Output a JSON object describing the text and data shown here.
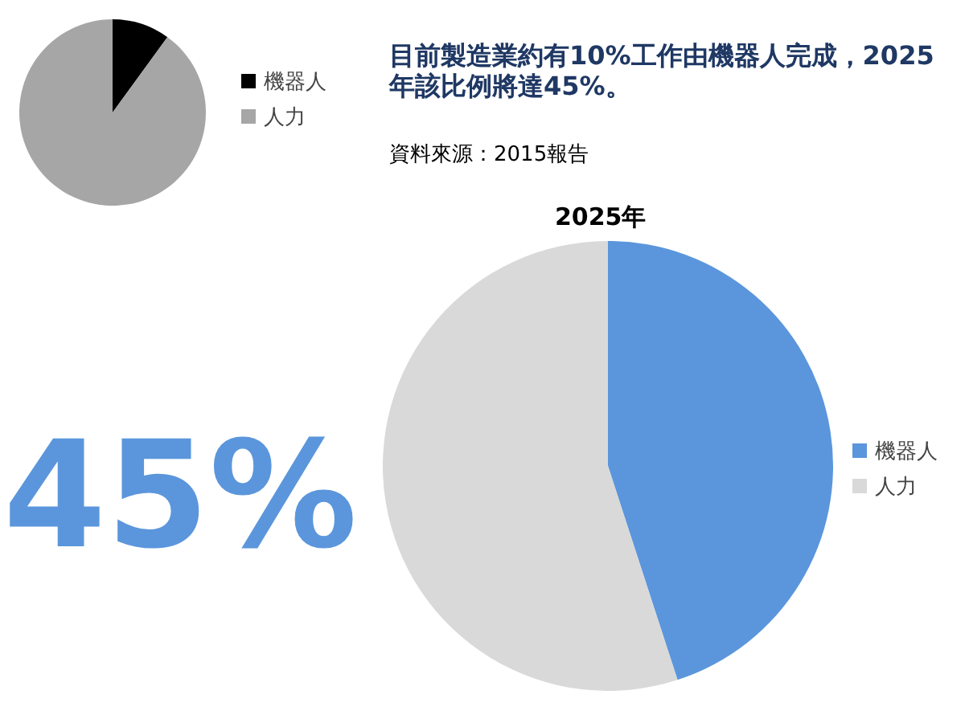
{
  "chart_data": [
    {
      "type": "pie",
      "title": "目前製造業約有10%工作由機器人完成，2025年該比例將達45%。",
      "categories": [
        "機器人",
        "人力"
      ],
      "values": [
        10,
        90
      ],
      "colors": [
        "#000000",
        "#a6a6a6"
      ],
      "legend": "right",
      "annotations": [
        "資料來源：2015報告"
      ]
    },
    {
      "type": "pie",
      "title": "2025年",
      "categories": [
        "機器人",
        "人力"
      ],
      "values": [
        45,
        55
      ],
      "colors": [
        "#5b96dc",
        "#d9d9d9"
      ],
      "legend": "right",
      "annotations": [
        "45%"
      ]
    }
  ]
}
